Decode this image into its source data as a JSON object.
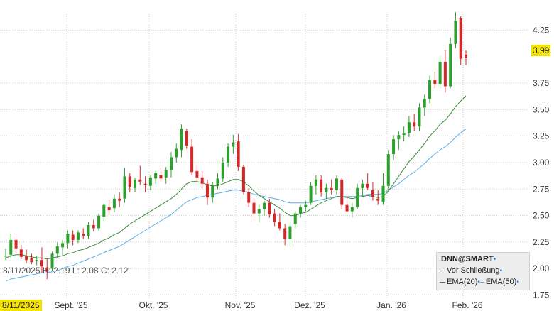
{
  "chart_data": {
    "type": "candlestick",
    "symbol": "DNN@SMART",
    "y_ticks": [
      "4.25",
      "3.75",
      "3.50",
      "3.25",
      "3.00",
      "2.75",
      "2.50",
      "2.25",
      "2.00",
      "1.75"
    ],
    "ylim": [
      1.72,
      4.4
    ],
    "x_labels": [
      "Sept. '25",
      "Okt. '25",
      "Nov. '25",
      "Dez. '25",
      "Jan. '26",
      "Feb. '26"
    ],
    "start_date_label": "8/11/2025",
    "info_line": "8/11/2025 H: 2.19 L: 2.08 C: 2.12",
    "current_price": "3.99",
    "legend": {
      "title": "DNN@SMART",
      "close_label": "Vor Schließung",
      "ema20_label": "EMA(20)",
      "ema50_label": "EMA(50)"
    },
    "colors": {
      "up": "#2ca02c",
      "down": "#d62728",
      "ema20": "#3a8a3a",
      "ema50": "#5aaee8",
      "highlight": "#f4e200"
    },
    "candles": [
      [
        2.12,
        2.19,
        2.08,
        2.12
      ],
      [
        2.13,
        2.33,
        2.1,
        2.27
      ],
      [
        2.27,
        2.3,
        2.15,
        2.19
      ],
      [
        2.18,
        2.22,
        2.09,
        2.11
      ],
      [
        2.12,
        2.18,
        2.05,
        2.08
      ],
      [
        2.1,
        2.14,
        2.04,
        2.06
      ],
      [
        2.07,
        2.12,
        2.03,
        2.08
      ],
      [
        2.08,
        2.2,
        1.96,
        2.02
      ],
      [
        2.01,
        2.09,
        1.9,
        1.97
      ],
      [
        2.0,
        2.16,
        1.98,
        2.14
      ],
      [
        2.14,
        2.25,
        2.1,
        2.21
      ],
      [
        2.2,
        2.27,
        2.12,
        2.24
      ],
      [
        2.24,
        2.36,
        2.19,
        2.33
      ],
      [
        2.32,
        2.36,
        2.22,
        2.27
      ],
      [
        2.27,
        2.36,
        2.24,
        2.34
      ],
      [
        2.33,
        2.38,
        2.28,
        2.31
      ],
      [
        2.31,
        2.44,
        2.28,
        2.41
      ],
      [
        2.41,
        2.46,
        2.35,
        2.38
      ],
      [
        2.38,
        2.52,
        2.36,
        2.5
      ],
      [
        2.49,
        2.62,
        2.45,
        2.6
      ],
      [
        2.58,
        2.65,
        2.5,
        2.55
      ],
      [
        2.57,
        2.7,
        2.53,
        2.66
      ],
      [
        2.66,
        2.72,
        2.58,
        2.64
      ],
      [
        2.66,
        2.95,
        2.62,
        2.87
      ],
      [
        2.87,
        2.9,
        2.72,
        2.77
      ],
      [
        2.76,
        2.86,
        2.72,
        2.84
      ],
      [
        2.84,
        2.97,
        2.79,
        2.82
      ],
      [
        2.8,
        2.87,
        2.72,
        2.79
      ],
      [
        2.78,
        2.88,
        2.74,
        2.86
      ],
      [
        2.85,
        2.92,
        2.8,
        2.9
      ],
      [
        2.88,
        2.95,
        2.82,
        2.85
      ],
      [
        2.86,
        2.96,
        2.8,
        2.93
      ],
      [
        2.93,
        3.1,
        2.86,
        3.05
      ],
      [
        3.05,
        3.18,
        3.0,
        3.13
      ],
      [
        3.12,
        3.36,
        3.05,
        3.32
      ],
      [
        3.3,
        3.32,
        3.13,
        3.16
      ],
      [
        3.15,
        3.22,
        2.88,
        2.91
      ],
      [
        2.92,
        2.98,
        2.82,
        2.86
      ],
      [
        2.86,
        2.92,
        2.76,
        2.8
      ],
      [
        2.8,
        2.84,
        2.6,
        2.67
      ],
      [
        2.67,
        2.82,
        2.62,
        2.79
      ],
      [
        2.79,
        2.9,
        2.75,
        2.85
      ],
      [
        2.85,
        3.05,
        2.82,
        3.0
      ],
      [
        3.0,
        3.18,
        2.96,
        3.15
      ],
      [
        3.15,
        3.26,
        3.08,
        3.19
      ],
      [
        3.2,
        3.27,
        2.92,
        2.96
      ],
      [
        2.96,
        2.98,
        2.7,
        2.72
      ],
      [
        2.72,
        2.76,
        2.58,
        2.62
      ],
      [
        2.62,
        2.66,
        2.48,
        2.52
      ],
      [
        2.52,
        2.6,
        2.44,
        2.56
      ],
      [
        2.56,
        2.64,
        2.5,
        2.62
      ],
      [
        2.62,
        2.66,
        2.48,
        2.51
      ],
      [
        2.52,
        2.56,
        2.4,
        2.44
      ],
      [
        2.44,
        2.52,
        2.36,
        2.38
      ],
      [
        2.38,
        2.42,
        2.22,
        2.28
      ],
      [
        2.28,
        2.44,
        2.2,
        2.4
      ],
      [
        2.42,
        2.54,
        2.38,
        2.52
      ],
      [
        2.52,
        2.6,
        2.48,
        2.58
      ],
      [
        2.58,
        2.64,
        2.54,
        2.6
      ],
      [
        2.62,
        2.82,
        2.6,
        2.78
      ],
      [
        2.78,
        2.88,
        2.7,
        2.84
      ],
      [
        2.84,
        2.88,
        2.68,
        2.72
      ],
      [
        2.72,
        2.8,
        2.66,
        2.76
      ],
      [
        2.76,
        2.84,
        2.7,
        2.74
      ],
      [
        2.74,
        2.88,
        2.7,
        2.85
      ],
      [
        2.84,
        2.86,
        2.56,
        2.6
      ],
      [
        2.6,
        2.68,
        2.52,
        2.54
      ],
      [
        2.54,
        2.62,
        2.48,
        2.58
      ],
      [
        2.58,
        2.8,
        2.56,
        2.76
      ],
      [
        2.76,
        2.84,
        2.68,
        2.8
      ],
      [
        2.8,
        2.9,
        2.74,
        2.76
      ],
      [
        2.74,
        2.82,
        2.64,
        2.68
      ],
      [
        2.66,
        2.74,
        2.6,
        2.64
      ],
      [
        2.63,
        2.9,
        2.6,
        2.78
      ],
      [
        2.78,
        3.12,
        2.74,
        3.08
      ],
      [
        3.08,
        3.26,
        3.02,
        3.22
      ],
      [
        3.22,
        3.3,
        3.12,
        3.26
      ],
      [
        3.26,
        3.34,
        3.2,
        3.28
      ],
      [
        3.28,
        3.44,
        3.24,
        3.38
      ],
      [
        3.38,
        3.46,
        3.3,
        3.34
      ],
      [
        3.34,
        3.56,
        3.3,
        3.52
      ],
      [
        3.52,
        3.64,
        3.44,
        3.6
      ],
      [
        3.6,
        3.82,
        3.56,
        3.78
      ],
      [
        3.78,
        3.86,
        3.7,
        3.74
      ],
      [
        3.74,
        4.0,
        3.7,
        3.95
      ],
      [
        3.95,
        4.06,
        3.66,
        3.72
      ],
      [
        3.72,
        4.18,
        3.7,
        4.12
      ],
      [
        4.12,
        4.42,
        4.08,
        4.34
      ],
      [
        4.36,
        4.38,
        3.92,
        3.98
      ],
      [
        4.02,
        4.06,
        3.92,
        3.99
      ]
    ],
    "ema20": [
      2.1,
      2.12,
      2.13,
      2.13,
      2.12,
      2.11,
      2.1,
      2.1,
      2.09,
      2.1,
      2.11,
      2.12,
      2.14,
      2.15,
      2.17,
      2.18,
      2.2,
      2.22,
      2.24,
      2.27,
      2.29,
      2.32,
      2.34,
      2.38,
      2.42,
      2.45,
      2.48,
      2.51,
      2.54,
      2.57,
      2.6,
      2.63,
      2.66,
      2.7,
      2.75,
      2.8,
      2.82,
      2.82,
      2.81,
      2.79,
      2.78,
      2.78,
      2.8,
      2.82,
      2.84,
      2.84,
      2.82,
      2.78,
      2.73,
      2.69,
      2.66,
      2.63,
      2.6,
      2.57,
      2.53,
      2.5,
      2.5,
      2.52,
      2.53,
      2.56,
      2.59,
      2.62,
      2.64,
      2.66,
      2.68,
      2.68,
      2.67,
      2.66,
      2.67,
      2.68,
      2.69,
      2.68,
      2.67,
      2.68,
      2.73,
      2.8,
      2.87,
      2.94,
      3.01,
      3.06,
      3.12,
      3.18,
      3.25,
      3.3,
      3.36,
      3.4,
      3.46,
      3.53,
      3.58,
      3.63
    ],
    "ema50": [
      1.88,
      1.9,
      1.91,
      1.92,
      1.93,
      1.94,
      1.95,
      1.96,
      1.96,
      1.97,
      1.98,
      2.0,
      2.02,
      2.03,
      2.05,
      2.07,
      2.09,
      2.11,
      2.13,
      2.15,
      2.17,
      2.19,
      2.21,
      2.24,
      2.27,
      2.3,
      2.33,
      2.36,
      2.39,
      2.42,
      2.45,
      2.48,
      2.51,
      2.55,
      2.59,
      2.63,
      2.65,
      2.67,
      2.68,
      2.69,
      2.7,
      2.71,
      2.72,
      2.73,
      2.74,
      2.74,
      2.73,
      2.72,
      2.7,
      2.69,
      2.68,
      2.67,
      2.66,
      2.65,
      2.63,
      2.62,
      2.62,
      2.62,
      2.62,
      2.63,
      2.64,
      2.65,
      2.66,
      2.67,
      2.68,
      2.68,
      2.68,
      2.68,
      2.68,
      2.69,
      2.7,
      2.7,
      2.7,
      2.71,
      2.74,
      2.77,
      2.8,
      2.84,
      2.88,
      2.91,
      2.95,
      2.99,
      3.04,
      3.08,
      3.12,
      3.15,
      3.19,
      3.24,
      3.28,
      3.32
    ]
  }
}
